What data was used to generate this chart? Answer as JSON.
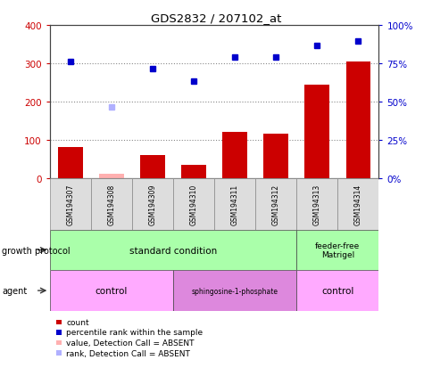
{
  "title": "GDS2832 / 207102_at",
  "samples": [
    "GSM194307",
    "GSM194308",
    "GSM194309",
    "GSM194310",
    "GSM194311",
    "GSM194312",
    "GSM194313",
    "GSM194314"
  ],
  "count_values": [
    80,
    null,
    60,
    35,
    120,
    115,
    245,
    305
  ],
  "count_absent": [
    null,
    12,
    null,
    null,
    null,
    null,
    null,
    null
  ],
  "rank_values": [
    305,
    null,
    285,
    253,
    315,
    315,
    347,
    357
  ],
  "rank_absent": [
    null,
    185,
    null,
    null,
    null,
    null,
    null,
    null
  ],
  "ylim_left": [
    0,
    400
  ],
  "ylim_right": [
    0,
    400
  ],
  "yticks_left": [
    0,
    100,
    200,
    300,
    400
  ],
  "ytick_labels_left": [
    "0",
    "100",
    "200",
    "300",
    "400"
  ],
  "ytick_labels_right": [
    "0%",
    "25%",
    "50%",
    "75%",
    "100%"
  ],
  "bar_color": "#cc0000",
  "bar_absent_color": "#ffb0b0",
  "rank_color": "#0000cc",
  "rank_absent_color": "#b0b0ff",
  "growth_protocol_row": {
    "standard_condition": {
      "start": 0,
      "end": 6,
      "label": "standard condition",
      "color": "#aaffaa"
    },
    "feeder_free": {
      "start": 6,
      "end": 8,
      "label": "feeder-free\nMatrigel",
      "color": "#aaffaa"
    }
  },
  "agent_row": {
    "control1": {
      "start": 0,
      "end": 3,
      "label": "control",
      "color": "#ffaaff"
    },
    "sphingosine": {
      "start": 3,
      "end": 6,
      "label": "sphingosine-1-phosphate",
      "color": "#dd88dd"
    },
    "control2": {
      "start": 6,
      "end": 8,
      "label": "control",
      "color": "#ffaaff"
    }
  },
  "legend_items": [
    {
      "label": "count",
      "color": "#cc0000"
    },
    {
      "label": "percentile rank within the sample",
      "color": "#0000cc"
    },
    {
      "label": "value, Detection Call = ABSENT",
      "color": "#ffb0b0"
    },
    {
      "label": "rank, Detection Call = ABSENT",
      "color": "#b0b0ff"
    }
  ],
  "background_color": "#ffffff",
  "grid_color": "#888888",
  "tick_color_left": "#cc0000",
  "tick_color_right": "#0000cc",
  "sample_box_color": "#dddddd",
  "sample_box_edge": "#888888"
}
